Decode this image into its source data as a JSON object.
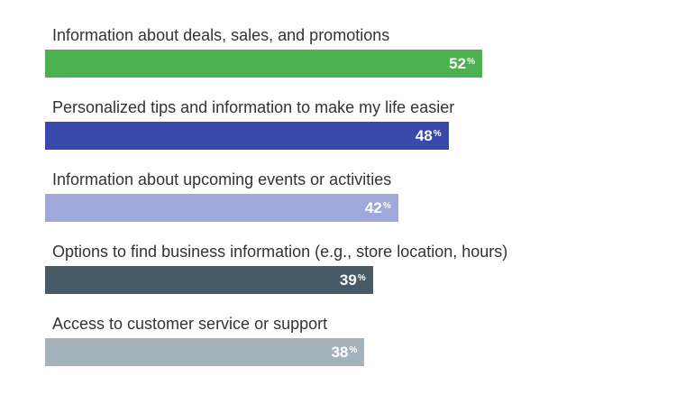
{
  "chart_data": {
    "type": "bar",
    "orientation": "horizontal",
    "categories": [
      "Information about deals, sales, and promotions",
      "Personalized tips and information to make my life easier",
      "Information about upcoming events or activities",
      "Options to find business information (e.g., store location, hours)",
      "Access to customer service or support"
    ],
    "values": [
      52,
      48,
      42,
      39,
      38
    ],
    "value_labels": [
      "52",
      "48",
      "42",
      "39",
      "38"
    ],
    "value_suffix": "%",
    "colors": [
      "#4caf50",
      "#3949ab",
      "#9fa8da",
      "#455a64",
      "#a4b3bb"
    ],
    "xlim": [
      0,
      100
    ],
    "grid": false,
    "legend": "none"
  }
}
